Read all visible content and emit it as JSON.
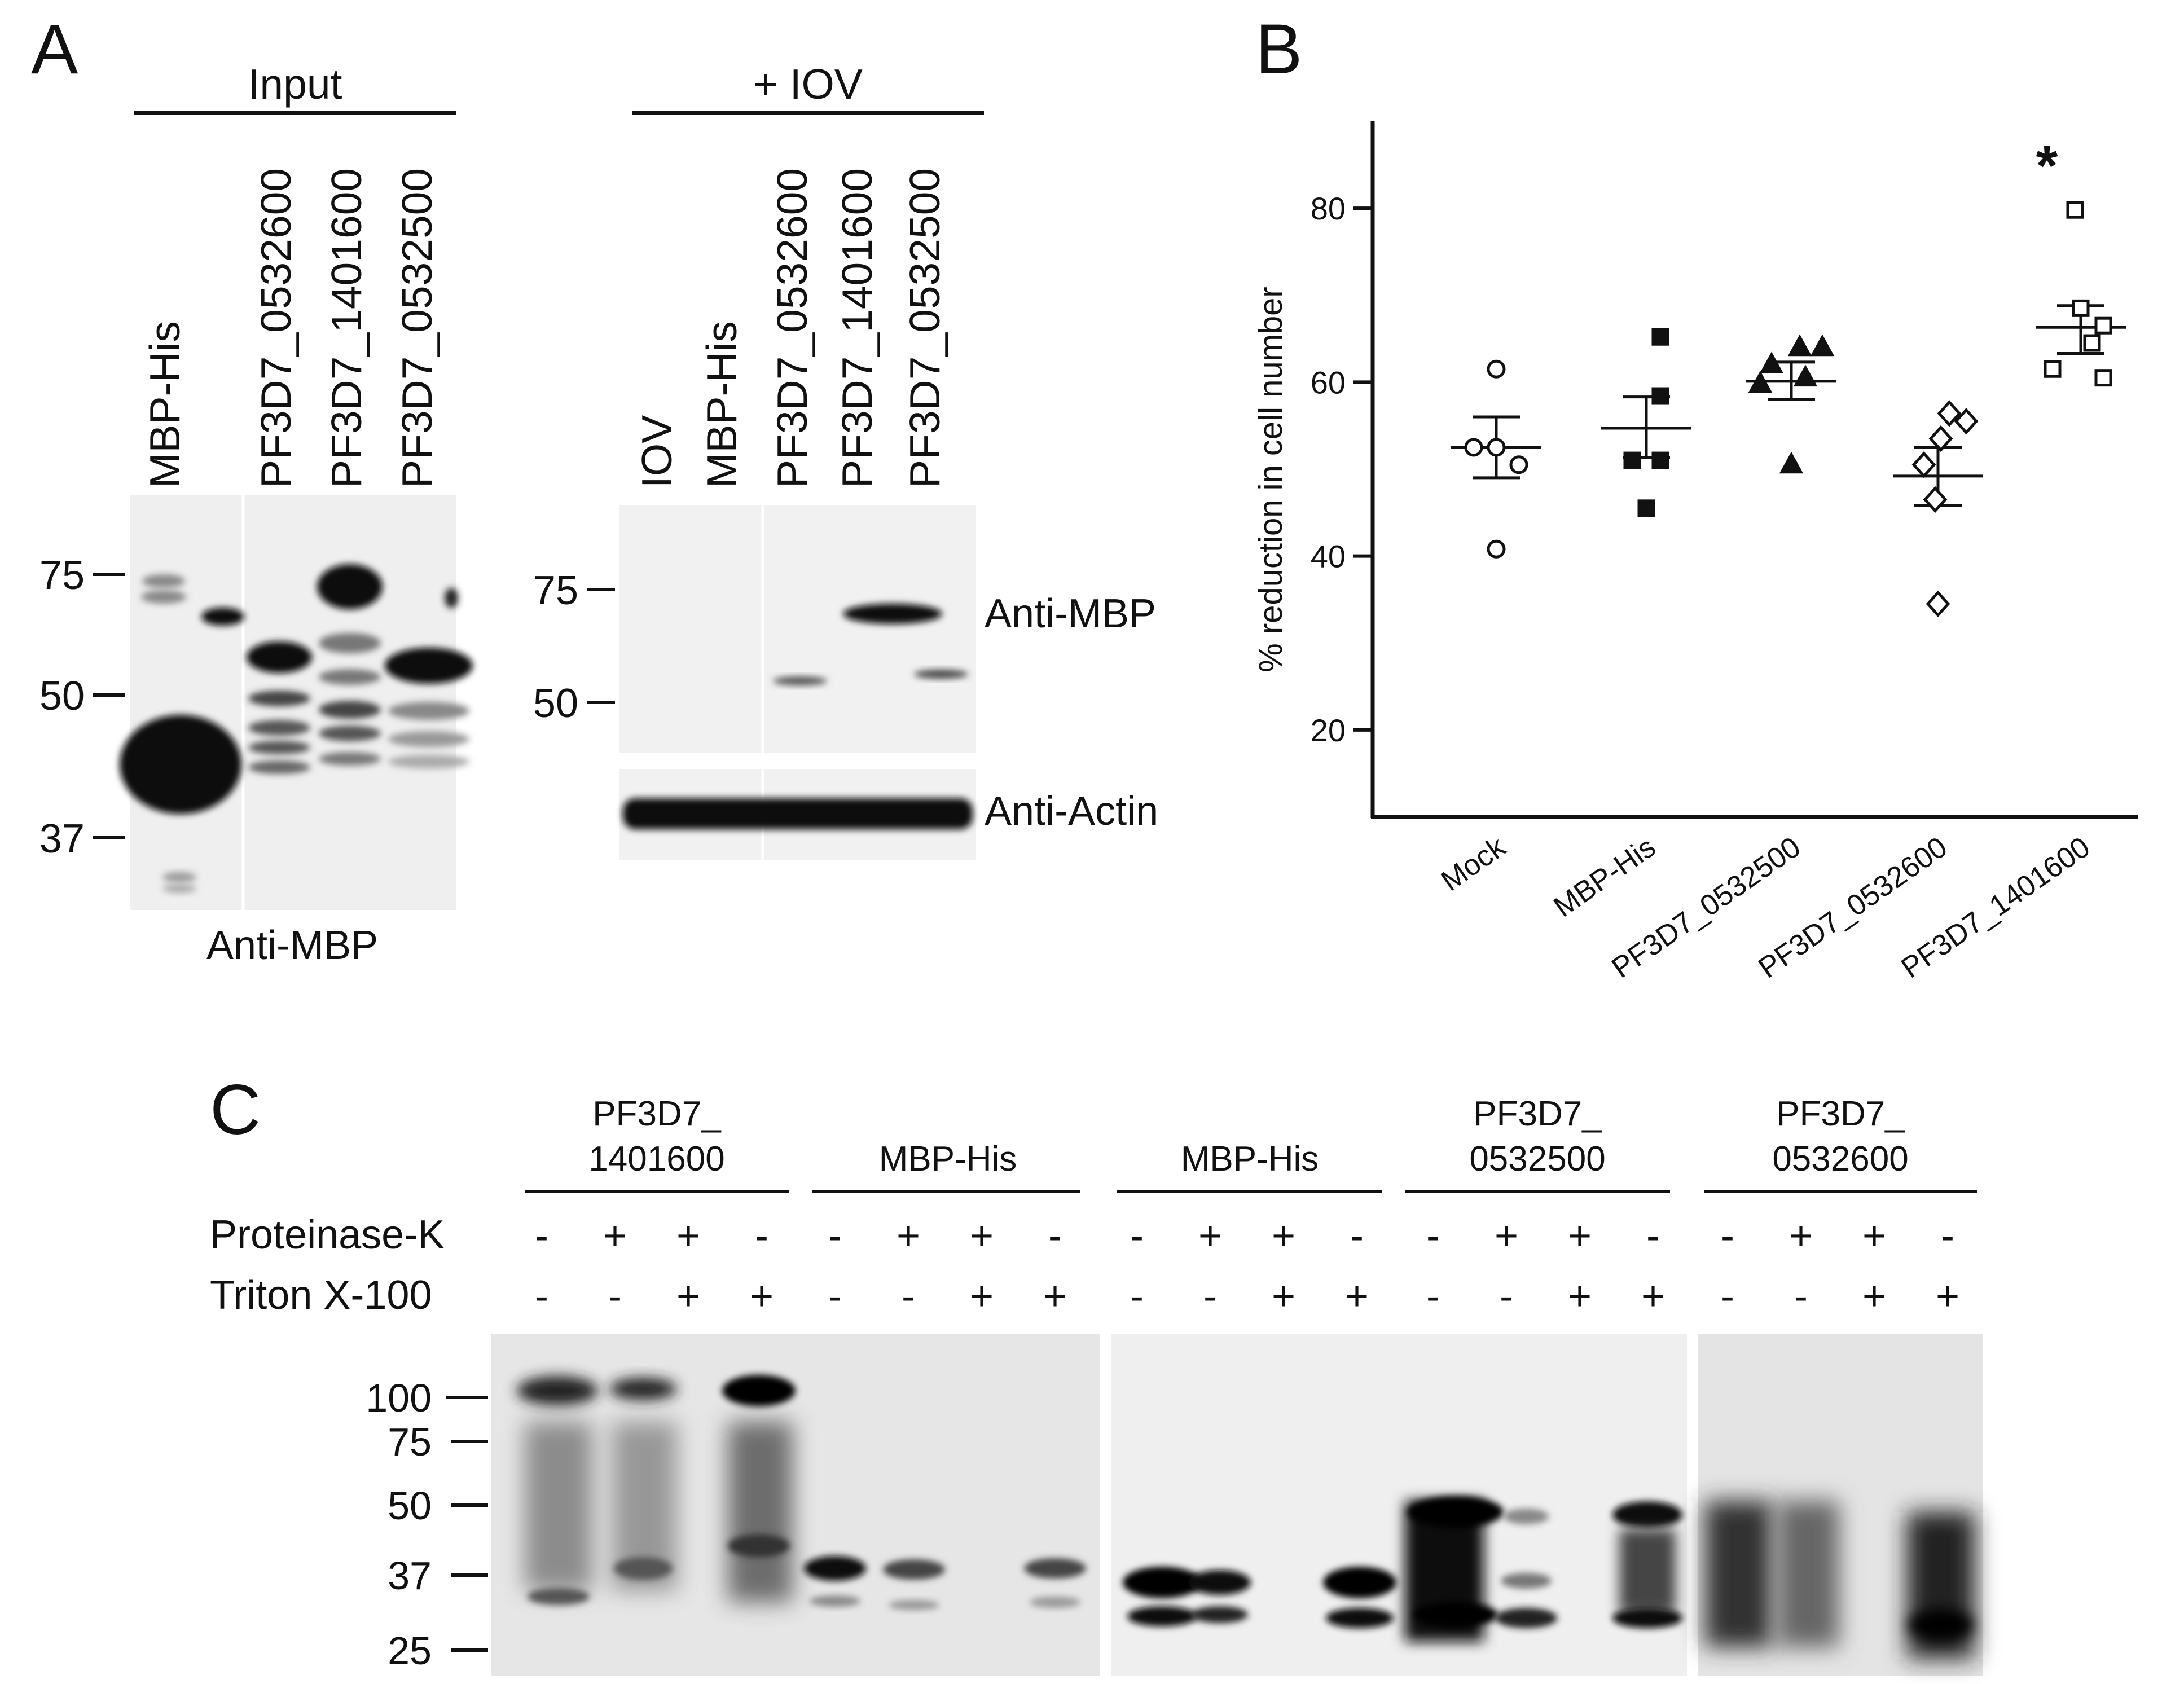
{
  "panel_a": {
    "letter": "A",
    "input_header": "Input",
    "iov_header": "+ IOV",
    "input_lanes": [
      "MBP-His",
      "PF3D7_0532600",
      "PF3D7_1401600",
      "PF3D7_0532500"
    ],
    "iov_lanes": [
      "IOV",
      "MBP-His",
      "PF3D7_0532600",
      "PF3D7_1401600",
      "PF3D7_0532500"
    ],
    "input_markers": [
      "75",
      "50",
      "37"
    ],
    "iov_markers": [
      "75",
      "50"
    ],
    "input_blot_label": "Anti-MBP",
    "iov_blot_label_top": "Anti-MBP",
    "iov_blot_label_bottom": "Anti-Actin"
  },
  "panel_b": {
    "letter": "B",
    "significance_marker": "*"
  },
  "chart_data": {
    "type": "scatter",
    "ylabel": "% reduction in cell number",
    "xlabel": "",
    "ylim": [
      10,
      90
    ],
    "yticks": [
      20,
      40,
      60,
      80
    ],
    "categories": [
      "Mock",
      "MBP-His",
      "PF3D7_0532500",
      "PF3D7_0532600",
      "PF3D7_1401600"
    ],
    "series": [
      {
        "category": "Mock",
        "marker": "open-circle",
        "points": [
          61.5,
          52.5,
          50.5,
          52.5,
          40.8
        ],
        "mean": 52.5,
        "sem_low": 49.0,
        "sem_high": 56.0
      },
      {
        "category": "MBP-His",
        "marker": "filled-square",
        "points": [
          65.2,
          58.4,
          51.0,
          51.0,
          45.5
        ],
        "mean": 54.7,
        "sem_low": 51.3,
        "sem_high": 58.3
      },
      {
        "category": "PF3D7_0532500",
        "marker": "filled-triangle",
        "points": [
          64.0,
          64.0,
          62.0,
          59.8,
          60.5,
          50.5
        ],
        "mean": 60.1,
        "sem_low": 58.0,
        "sem_high": 62.3
      },
      {
        "category": "PF3D7_0532600",
        "marker": "open-diamond",
        "points": [
          56.4,
          55.5,
          53.5,
          50.5,
          46.5,
          34.5
        ],
        "mean": 49.2,
        "sem_low": 45.8,
        "sem_high": 52.5
      },
      {
        "category": "PF3D7_1401600",
        "marker": "open-square",
        "points": [
          79.8,
          68.5,
          66.5,
          64.5,
          61.5,
          60.5
        ],
        "mean": 66.3,
        "sem_low": 63.3,
        "sem_high": 68.8
      }
    ]
  },
  "panel_c": {
    "letter": "C",
    "groups": [
      {
        "line1": "PF3D7_",
        "line2": "1401600"
      },
      {
        "line1": "MBP-His",
        "line2": ""
      },
      {
        "line1": "MBP-His",
        "line2": ""
      },
      {
        "line1": "PF3D7_",
        "line2": "0532500"
      },
      {
        "line1": "PF3D7_",
        "line2": "0532600"
      }
    ],
    "row_labels": [
      "Proteinase-K",
      "Triton X-100"
    ],
    "proteinase_k": [
      "-",
      "+",
      "+",
      "-"
    ],
    "triton": [
      "-",
      "-",
      "+",
      "+"
    ],
    "markers": [
      "100",
      "75",
      "50",
      "37",
      "25"
    ]
  }
}
